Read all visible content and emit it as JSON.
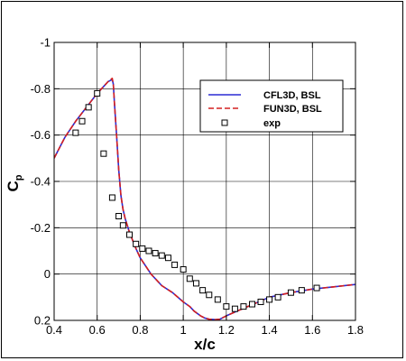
{
  "chart_data": {
    "type": "line",
    "xlabel": "x/c",
    "ylabel": "C",
    "ylabel_subscript": "p",
    "xlim": [
      0.4,
      1.8
    ],
    "ylim": [
      0.2,
      -1.0
    ],
    "y_inverted": true,
    "grid": true,
    "legend_placement": "top-right",
    "x_ticks": [
      0.4,
      0.6,
      0.8,
      1.0,
      1.2,
      1.4,
      1.6,
      1.8
    ],
    "x_tick_labels": [
      "0.4",
      "0.6",
      "0.8",
      "1",
      "1.2",
      "1.4",
      "1.6",
      "1.8"
    ],
    "y_ticks": [
      -1.0,
      -0.8,
      -0.6,
      -0.4,
      -0.2,
      0.0,
      0.2
    ],
    "y_tick_labels": [
      "-1",
      "-0.8",
      "-0.6",
      "-0.4",
      "-0.2",
      "0",
      "0.2"
    ],
    "series": [
      {
        "name": "CFL3D, BSL",
        "style": "solid",
        "color": "#2b2bd4",
        "x": [
          0.4,
          0.45,
          0.5,
          0.55,
          0.6,
          0.63,
          0.65,
          0.67,
          0.675,
          0.68,
          0.69,
          0.7,
          0.71,
          0.72,
          0.73,
          0.75,
          0.78,
          0.8,
          0.85,
          0.9,
          0.95,
          1.0,
          1.03,
          1.05,
          1.08,
          1.1,
          1.12,
          1.15,
          1.17,
          1.2,
          1.25,
          1.3,
          1.35,
          1.4,
          1.5,
          1.6,
          1.7,
          1.8
        ],
        "y": [
          -0.5,
          -0.59,
          -0.66,
          -0.72,
          -0.78,
          -0.81,
          -0.83,
          -0.84,
          -0.82,
          -0.74,
          -0.6,
          -0.45,
          -0.34,
          -0.28,
          -0.24,
          -0.18,
          -0.11,
          -0.07,
          0.0,
          0.05,
          0.08,
          0.12,
          0.14,
          0.16,
          0.18,
          0.19,
          0.195,
          0.197,
          0.195,
          0.18,
          0.16,
          0.14,
          0.12,
          0.1,
          0.08,
          0.065,
          0.055,
          0.045
        ]
      },
      {
        "name": "FUN3D, BSL",
        "style": "dashed",
        "color": "#d42020",
        "x": [
          0.4,
          0.45,
          0.5,
          0.55,
          0.6,
          0.63,
          0.65,
          0.67,
          0.675,
          0.68,
          0.69,
          0.7,
          0.71,
          0.72,
          0.73,
          0.75,
          0.78,
          0.8,
          0.85,
          0.9,
          0.95,
          1.0,
          1.03,
          1.05,
          1.08,
          1.1,
          1.12,
          1.15,
          1.17,
          1.2,
          1.25,
          1.3,
          1.35,
          1.4,
          1.5,
          1.6,
          1.7,
          1.8
        ],
        "y": [
          -0.5,
          -0.59,
          -0.66,
          -0.72,
          -0.78,
          -0.81,
          -0.83,
          -0.845,
          -0.82,
          -0.74,
          -0.6,
          -0.45,
          -0.34,
          -0.28,
          -0.24,
          -0.18,
          -0.11,
          -0.07,
          0.0,
          0.05,
          0.08,
          0.12,
          0.14,
          0.16,
          0.18,
          0.19,
          0.195,
          0.197,
          0.195,
          0.18,
          0.16,
          0.14,
          0.12,
          0.1,
          0.08,
          0.065,
          0.055,
          0.045
        ]
      },
      {
        "name": "exp",
        "style": "markers",
        "marker": "open-square",
        "color": "#000000",
        "x": [
          0.5,
          0.53,
          0.56,
          0.6,
          0.63,
          0.67,
          0.7,
          0.72,
          0.75,
          0.78,
          0.81,
          0.84,
          0.87,
          0.9,
          0.93,
          0.96,
          1.0,
          1.03,
          1.06,
          1.09,
          1.12,
          1.16,
          1.2,
          1.24,
          1.28,
          1.32,
          1.36,
          1.4,
          1.44,
          1.5,
          1.55,
          1.62
        ],
        "y": [
          -0.61,
          -0.66,
          -0.72,
          -0.78,
          -0.52,
          -0.33,
          -0.25,
          -0.21,
          -0.17,
          -0.13,
          -0.11,
          -0.1,
          -0.09,
          -0.08,
          -0.07,
          -0.04,
          -0.02,
          0.02,
          0.04,
          0.07,
          0.09,
          0.11,
          0.14,
          0.15,
          0.14,
          0.13,
          0.12,
          0.11,
          0.1,
          0.08,
          0.07,
          0.06
        ]
      }
    ]
  }
}
